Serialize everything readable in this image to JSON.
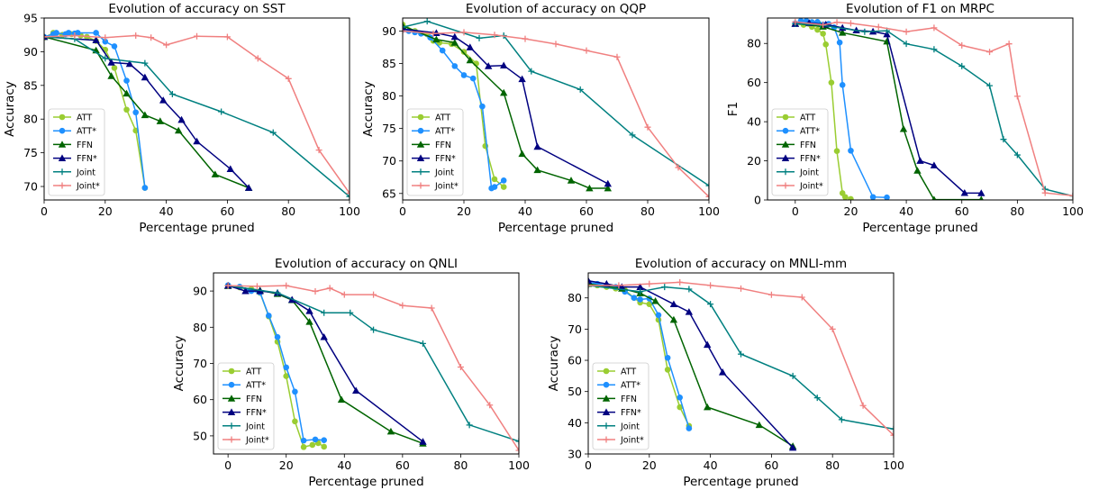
{
  "chart_data": [
    {
      "type": "line",
      "title": "Evolution of accuracy on SST",
      "xlabel": "Percentage pruned",
      "ylabel": "Accuracy",
      "xlim": [
        0,
        100
      ],
      "ylim": [
        68,
        95
      ],
      "xticks": [
        0,
        20,
        40,
        60,
        80,
        100
      ],
      "yticks": [
        70,
        75,
        80,
        85,
        90,
        95
      ],
      "legend": "lower-left",
      "series": [
        {
          "name": "ATT",
          "x": [
            0,
            3,
            6,
            9,
            12,
            14,
            17,
            20,
            23,
            27,
            30,
            33
          ],
          "y": [
            92.1,
            92.8,
            92.5,
            92.6,
            92.4,
            92.2,
            91.6,
            90.3,
            87.6,
            81.4,
            78.3,
            69.8
          ]
        },
        {
          "name": "ATT*",
          "x": [
            0,
            3,
            4,
            7,
            8,
            10,
            11,
            17,
            20,
            23,
            27,
            30,
            33
          ],
          "y": [
            92.2,
            92.6,
            92.8,
            92.6,
            92.8,
            92.7,
            92.8,
            92.8,
            91.5,
            90.8,
            85.7,
            81.0,
            69.8
          ]
        },
        {
          "name": "FFN",
          "x": [
            0,
            17,
            22,
            27,
            33,
            38,
            44,
            56,
            67
          ],
          "y": [
            92.2,
            90.2,
            86.4,
            83.8,
            80.6,
            79.7,
            78.3,
            71.8,
            69.8
          ]
        },
        {
          "name": "FFN*",
          "x": [
            0,
            17,
            22,
            28,
            33,
            39,
            45,
            50,
            61,
            67
          ],
          "y": [
            92.2,
            91.7,
            88.4,
            88.2,
            86.2,
            82.8,
            79.9,
            76.7,
            72.6,
            69.8
          ]
        },
        {
          "name": "Joint",
          "x": [
            0,
            10,
            20,
            33,
            42,
            58,
            75,
            100
          ],
          "y": [
            92.2,
            91.9,
            89.0,
            88.3,
            83.7,
            81.1,
            78.0,
            68.5
          ]
        },
        {
          "name": "Joint*",
          "x": [
            0,
            10,
            20,
            30,
            35,
            40,
            50,
            60,
            70,
            80,
            90,
            100
          ],
          "y": [
            92.2,
            92.4,
            92.1,
            92.4,
            92.1,
            91.0,
            92.3,
            92.2,
            89.0,
            86.0,
            75.4,
            69.0
          ]
        }
      ]
    },
    {
      "type": "line",
      "title": "Evolution of accuracy on QQP",
      "xlabel": "Percentage pruned",
      "ylabel": "Accuracy",
      "xlim": [
        0,
        100
      ],
      "ylim": [
        64,
        92
      ],
      "xticks": [
        0,
        20,
        40,
        60,
        80,
        100
      ],
      "yticks": [
        65,
        70,
        75,
        80,
        85,
        90
      ],
      "legend": "lower-left",
      "series": [
        {
          "name": "ATT",
          "x": [
            0,
            4,
            8,
            10,
            12,
            16,
            20,
            24,
            27,
            30,
            33
          ],
          "y": [
            91.0,
            90.0,
            89.5,
            88.5,
            88.2,
            88.0,
            86.8,
            85.0,
            72.3,
            67.2,
            66.0
          ]
        },
        {
          "name": "ATT*",
          "x": [
            0,
            2,
            4,
            6,
            9,
            13,
            17,
            20,
            23,
            26,
            29,
            30,
            33
          ],
          "y": [
            90.5,
            90.0,
            89.8,
            89.6,
            89.0,
            87.0,
            84.6,
            83.2,
            82.7,
            78.4,
            65.8,
            66.0,
            67.0
          ]
        },
        {
          "name": "FFN",
          "x": [
            0,
            11,
            17,
            22,
            33,
            39,
            44,
            55,
            61,
            67
          ],
          "y": [
            90.8,
            88.7,
            88.2,
            85.5,
            80.5,
            71.1,
            68.6,
            67.0,
            65.8,
            65.8
          ]
        },
        {
          "name": "FFN*",
          "x": [
            0,
            11,
            17,
            22,
            28,
            33,
            39,
            44,
            67
          ],
          "y": [
            90.3,
            89.7,
            89.1,
            87.5,
            84.6,
            84.7,
            82.6,
            72.2,
            66.5
          ]
        },
        {
          "name": "Joint",
          "x": [
            0,
            8,
            25,
            33,
            42,
            58,
            75,
            100
          ],
          "y": [
            90.6,
            91.5,
            88.9,
            89.3,
            83.8,
            81.0,
            74.0,
            66.2
          ]
        },
        {
          "name": "Joint*",
          "x": [
            0,
            10,
            20,
            30,
            40,
            50,
            60,
            70,
            80,
            90,
            100
          ],
          "y": [
            90.0,
            89.6,
            89.8,
            89.4,
            88.8,
            88.0,
            87.0,
            86.0,
            75.2,
            69.0,
            64.5
          ]
        }
      ]
    },
    {
      "type": "line",
      "title": "Evolution of F1 on MRPC",
      "xlabel": "Percentage pruned",
      "ylabel": "F1",
      "xlim": [
        -10,
        100
      ],
      "ylim": [
        0,
        93
      ],
      "xticks": [
        0,
        20,
        40,
        60,
        80,
        100
      ],
      "yticks": [
        0,
        20,
        40,
        60,
        80
      ],
      "legend": "lower-left",
      "series": [
        {
          "name": "ATT",
          "x": [
            0,
            3,
            6,
            8,
            10,
            11,
            13,
            15,
            17,
            18,
            20
          ],
          "y": [
            90.0,
            89.5,
            88.5,
            87.0,
            85.0,
            79.5,
            60.0,
            25.0,
            3.5,
            1.5,
            0.5
          ]
        },
        {
          "name": "ATT*",
          "x": [
            0,
            2,
            4,
            6,
            8,
            10,
            12,
            14,
            16,
            17,
            20,
            28,
            33
          ],
          "y": [
            90.3,
            91.5,
            91.5,
            90.9,
            91.0,
            89.7,
            90.0,
            88.2,
            80.5,
            58.8,
            25.2,
            1.5,
            1.3
          ]
        },
        {
          "name": "FFN",
          "x": [
            0,
            10,
            17,
            33,
            39,
            44,
            50,
            67
          ],
          "y": [
            90.2,
            88.6,
            85.5,
            81.0,
            36.3,
            15.0,
            0.2,
            0.2
          ]
        },
        {
          "name": "FFN*",
          "x": [
            0,
            5,
            11,
            17,
            22,
            28,
            33,
            45,
            50,
            61,
            67
          ],
          "y": [
            90.0,
            90.5,
            89.7,
            88.0,
            86.7,
            86.1,
            84.7,
            20.0,
            17.7,
            3.6,
            3.5
          ]
        },
        {
          "name": "Joint",
          "x": [
            0,
            9,
            25,
            33,
            40,
            50,
            60,
            70,
            75,
            80,
            90,
            100
          ],
          "y": [
            90.0,
            89.5,
            86.0,
            86.5,
            79.8,
            77.0,
            68.4,
            58.4,
            31.0,
            23.0,
            5.5,
            2.0
          ]
        },
        {
          "name": "Joint*",
          "x": [
            0,
            10,
            15,
            20,
            30,
            40,
            50,
            60,
            70,
            77,
            80,
            90,
            100
          ],
          "y": [
            91.0,
            89.5,
            90.8,
            90.3,
            88.4,
            86.0,
            88.0,
            79.0,
            75.7,
            79.8,
            53.0,
            3.6,
            2.2
          ]
        }
      ]
    },
    {
      "type": "line",
      "title": "Evolution of accuracy on QNLI",
      "xlabel": "Percentage pruned",
      "ylabel": "Accuracy",
      "xlim": [
        -5,
        100
      ],
      "ylim": [
        45,
        95
      ],
      "xticks": [
        0,
        20,
        40,
        60,
        80,
        100
      ],
      "yticks": [
        50,
        60,
        70,
        80,
        90
      ],
      "legend": "lower-left",
      "series": [
        {
          "name": "ATT",
          "x": [
            0,
            4,
            8,
            11,
            14,
            17,
            20,
            23,
            26,
            29,
            31,
            33
          ],
          "y": [
            91.5,
            91.0,
            90.5,
            89.5,
            83.0,
            76.0,
            66.5,
            54.0,
            46.9,
            47.5,
            48.0,
            47.0
          ]
        },
        {
          "name": "ATT*",
          "x": [
            0,
            4,
            8,
            11,
            14,
            17,
            20,
            23,
            26,
            30,
            33
          ],
          "y": [
            91.6,
            91.2,
            90.0,
            89.6,
            83.2,
            77.3,
            68.9,
            62.2,
            48.7,
            49.0,
            48.8
          ]
        },
        {
          "name": "FFN",
          "x": [
            0,
            11,
            17,
            22,
            28,
            39,
            56,
            67
          ],
          "y": [
            91.4,
            90.2,
            89.2,
            87.5,
            81.5,
            60.0,
            51.2,
            47.9
          ]
        },
        {
          "name": "FFN*",
          "x": [
            0,
            6,
            11,
            17,
            22,
            28,
            33,
            44,
            67
          ],
          "y": [
            91.5,
            90.0,
            90.0,
            89.5,
            87.6,
            84.5,
            77.3,
            62.5,
            48.4
          ]
        },
        {
          "name": "Joint",
          "x": [
            0,
            17,
            33,
            42,
            50,
            67,
            83,
            100
          ],
          "y": [
            91.5,
            89.5,
            84.0,
            84.0,
            79.3,
            75.5,
            53.0,
            48.5
          ]
        },
        {
          "name": "Joint*",
          "x": [
            0,
            10,
            20,
            30,
            35,
            40,
            50,
            60,
            70,
            80,
            90,
            100
          ],
          "y": [
            91.5,
            91.3,
            91.5,
            89.9,
            90.8,
            89.0,
            89.0,
            86.0,
            85.3,
            69.0,
            58.5,
            46.0
          ]
        }
      ]
    },
    {
      "type": "line",
      "title": "Evolution of accuracy on MNLI-mm",
      "xlabel": "Percentage pruned",
      "ylabel": "Accuracy",
      "xlim": [
        0,
        100
      ],
      "ylim": [
        30,
        88
      ],
      "xticks": [
        0,
        20,
        40,
        60,
        80,
        100
      ],
      "yticks": [
        30,
        40,
        50,
        60,
        70,
        80
      ],
      "legend": "lower-left",
      "series": [
        {
          "name": "ATT",
          "x": [
            0,
            3,
            6,
            9,
            12,
            15,
            17,
            20,
            23,
            26,
            30,
            33
          ],
          "y": [
            84.5,
            84.0,
            83.5,
            83.0,
            82.5,
            80.0,
            78.5,
            78.0,
            73.0,
            57.0,
            45.0,
            39.0
          ]
        },
        {
          "name": "ATT*",
          "x": [
            0,
            3,
            6,
            9,
            12,
            15,
            17,
            20,
            23,
            26,
            30,
            33
          ],
          "y": [
            85.0,
            84.5,
            84.0,
            83.5,
            82.0,
            80.0,
            79.5,
            79.8,
            74.5,
            60.8,
            48.1,
            38.2
          ]
        },
        {
          "name": "FFN",
          "x": [
            0,
            11,
            17,
            22,
            28,
            39,
            56,
            67
          ],
          "y": [
            84.5,
            83.0,
            81.5,
            79.0,
            73.0,
            45.0,
            39.3,
            32.5
          ]
        },
        {
          "name": "FFN*",
          "x": [
            0,
            6,
            11,
            17,
            28,
            33,
            39,
            44,
            67
          ],
          "y": [
            85.5,
            84.5,
            83.5,
            83.5,
            78.0,
            75.5,
            65.0,
            56.2,
            32.0
          ]
        },
        {
          "name": "Joint",
          "x": [
            0,
            17,
            25,
            33,
            40,
            50,
            67,
            75,
            83,
            100
          ],
          "y": [
            84.0,
            82.0,
            83.5,
            82.8,
            78.0,
            62.0,
            55.0,
            48.0,
            41.0,
            38.0
          ]
        },
        {
          "name": "Joint*",
          "x": [
            0,
            10,
            20,
            30,
            40,
            50,
            60,
            70,
            80,
            90,
            100
          ],
          "y": [
            84.0,
            84.0,
            84.5,
            85.0,
            84.0,
            83.0,
            81.0,
            80.2,
            70.0,
            45.5,
            36.0
          ]
        }
      ]
    }
  ],
  "styles": {
    "ATT": {
      "color": "#9acd32",
      "marker": "circle"
    },
    "ATT*": {
      "color": "#1e90ff",
      "marker": "circle"
    },
    "FFN": {
      "color": "#006400",
      "marker": "triangle"
    },
    "FFN*": {
      "color": "#000080",
      "marker": "triangle"
    },
    "Joint": {
      "color": "#008080",
      "marker": "plus"
    },
    "Joint*": {
      "color": "#f08080",
      "marker": "plus"
    }
  }
}
